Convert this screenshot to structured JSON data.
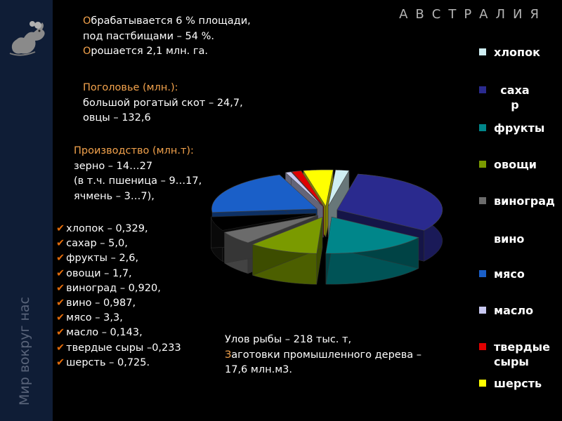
{
  "sidebar": {
    "title": "Мир вокруг нас"
  },
  "country": "АВСТРАЛИЯ",
  "land": {
    "l1_first": "О",
    "l1_rest": "брабатывается 6 % площади,",
    "l2": "под пастбищами – 54 %.",
    "l3_first": "О",
    "l3_rest": "рошается 2,1 млн. га."
  },
  "livestock": {
    "heading": "Поголовье (млн.):",
    "l1": "большой рогатый скот – 24,7,",
    "l2": "овцы – 132,6"
  },
  "production": {
    "heading": "Производство (млн.т):",
    "l1": "зерно – 14…27",
    "l2": "(в т.ч. пшеница – 9…17,",
    "l3": "ячмень – 3…7),",
    "items": [
      "хлопок – 0,329,",
      "сахар – 5,0,",
      "фрукты – 2,6,",
      "овощи – 1,7,",
      "виноград – 0,920,",
      "вино – 0,987,",
      "мясо – 3,3,",
      "масло – 0,143,",
      "твердые сыры –0,233",
      "шерсть – 0,725."
    ]
  },
  "fish": {
    "l1": "Улов рыбы – 218 тыс. т,",
    "l2_first": "З",
    "l2_rest": "аготовки промышленного дерева –",
    "l3": "17,6 млн.м3."
  },
  "chart_data": {
    "type": "pie",
    "style": "3d-exploded",
    "categories": [
      "хлопок",
      "сахар",
      "фрукты",
      "овощи",
      "виноград",
      "вино",
      "мясо",
      "масло",
      "твердые сыры",
      "шерсть"
    ],
    "values": [
      0.329,
      5.0,
      2.6,
      1.7,
      0.92,
      0.987,
      3.3,
      0.143,
      0.233,
      0.725
    ],
    "colors": [
      "#cfeef2",
      "#2a2a8e",
      "#00868a",
      "#7a9a00",
      "#6b6b6b",
      "#000000",
      "#1a5fc8",
      "#c8c8f0",
      "#e00000",
      "#ffff00"
    ],
    "legend_labels": [
      "хлопок",
      "саха р",
      "фрукты",
      "овощи",
      "виноград",
      "вино",
      "мясо",
      "масло",
      "твердые сыры",
      "шерсть"
    ],
    "legend": "right"
  }
}
